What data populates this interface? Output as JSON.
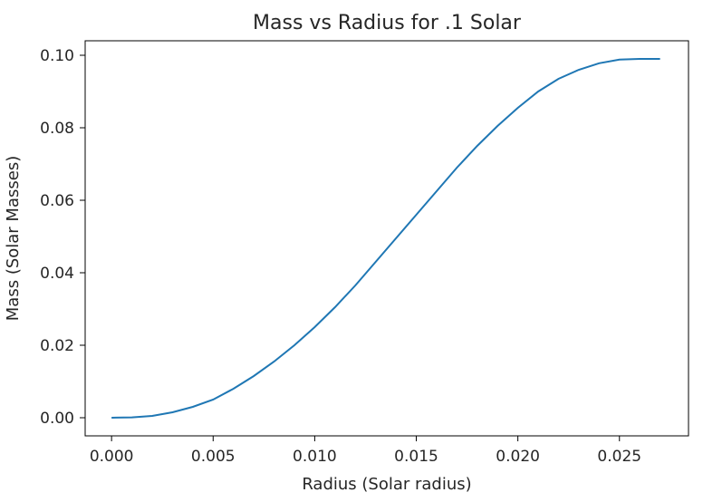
{
  "chart_data": {
    "type": "line",
    "title": "Mass vs Radius for .1 Solar",
    "xlabel": "Radius (Solar radius)",
    "ylabel": "Mass (Solar Masses)",
    "xlim": [
      -0.0013,
      0.0284
    ],
    "ylim": [
      -0.005,
      0.104
    ],
    "xticks": [
      0.0,
      0.005,
      0.01,
      0.015,
      0.02,
      0.025
    ],
    "xtick_labels": [
      "0.000",
      "0.005",
      "0.010",
      "0.015",
      "0.020",
      "0.025"
    ],
    "yticks": [
      0.0,
      0.02,
      0.04,
      0.06,
      0.08,
      0.1
    ],
    "ytick_labels": [
      "0.00",
      "0.02",
      "0.04",
      "0.06",
      "0.08",
      "0.10"
    ],
    "grid": false,
    "line_color": "#1f77b4",
    "series": [
      {
        "x": [
          0.0,
          0.001,
          0.002,
          0.003,
          0.004,
          0.005,
          0.006,
          0.007,
          0.008,
          0.009,
          0.01,
          0.011,
          0.012,
          0.013,
          0.014,
          0.015,
          0.016,
          0.017,
          0.018,
          0.019,
          0.02,
          0.021,
          0.022,
          0.023,
          0.024,
          0.025,
          0.026,
          0.027
        ],
        "y": [
          0.0,
          0.0001,
          0.0005,
          0.0015,
          0.003,
          0.005,
          0.008,
          0.0115,
          0.0155,
          0.02,
          0.025,
          0.0305,
          0.0365,
          0.043,
          0.0495,
          0.056,
          0.0625,
          0.069,
          0.075,
          0.0805,
          0.0855,
          0.09,
          0.0935,
          0.096,
          0.0978,
          0.0988,
          0.099,
          0.099
        ]
      }
    ]
  }
}
